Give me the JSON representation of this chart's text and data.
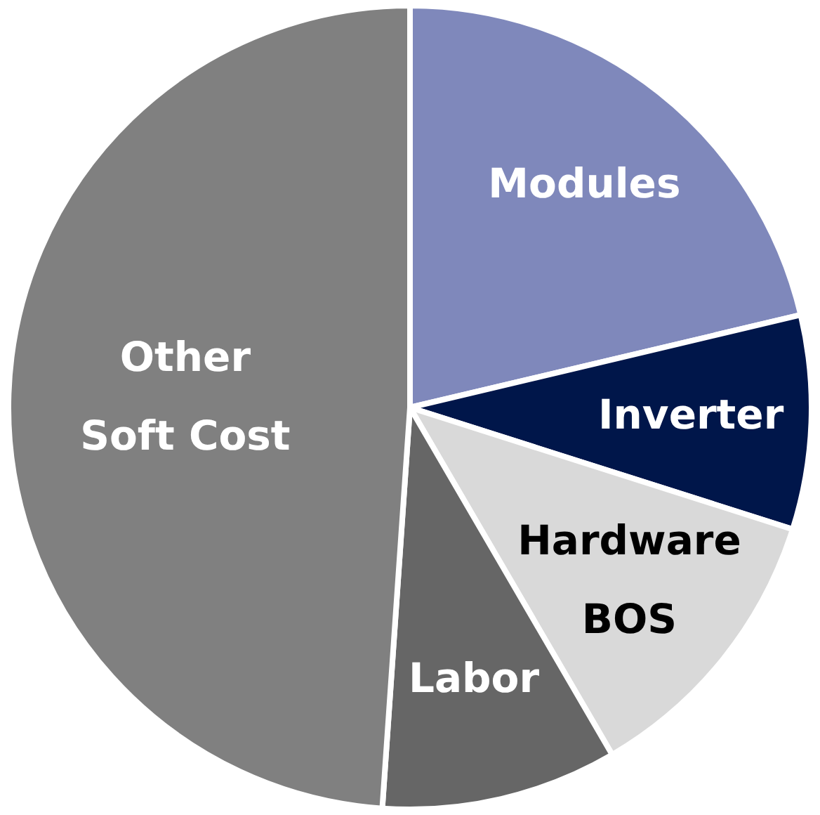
{
  "chart_data": {
    "type": "pie",
    "categories": [
      "Modules",
      "Inverter",
      "Hardware BOS",
      "Labor",
      "Other Soft Cost"
    ],
    "values": [
      21.3,
      8.6,
      11.7,
      9.5,
      48.9
    ],
    "colors": [
      "#7f88bb",
      "#00164a",
      "#d9d9d9",
      "#666666",
      "#808080"
    ],
    "legend": false
  }
}
